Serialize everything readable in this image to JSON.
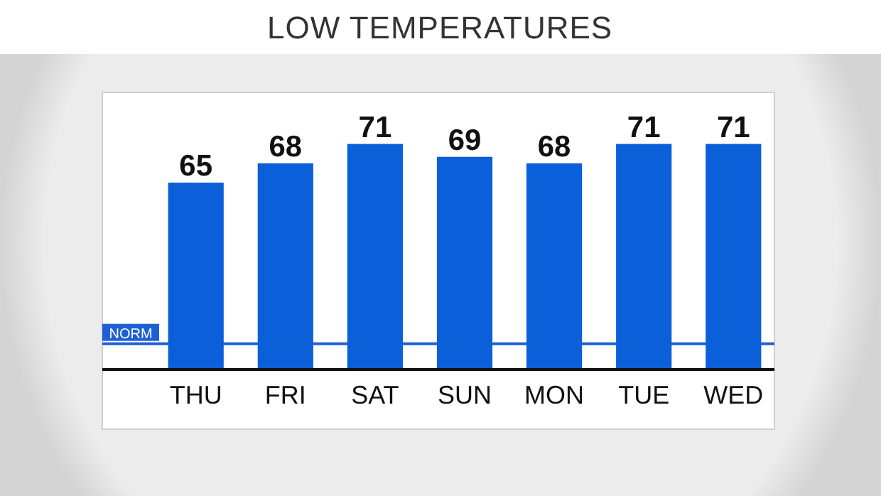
{
  "chart_data": {
    "type": "bar",
    "title": "LOW TEMPERATURES",
    "categories": [
      "THU",
      "FRI",
      "SAT",
      "SUN",
      "MON",
      "TUE",
      "WED"
    ],
    "values": [
      65,
      68,
      71,
      69,
      68,
      71,
      71
    ],
    "color": "#0b5fd9",
    "ylim": [
      36,
      79
    ],
    "data_labels": true,
    "ref_lines": [
      {
        "axis": "y",
        "value": 40,
        "label": "NORM",
        "color": "#1f5fd6"
      }
    ]
  }
}
